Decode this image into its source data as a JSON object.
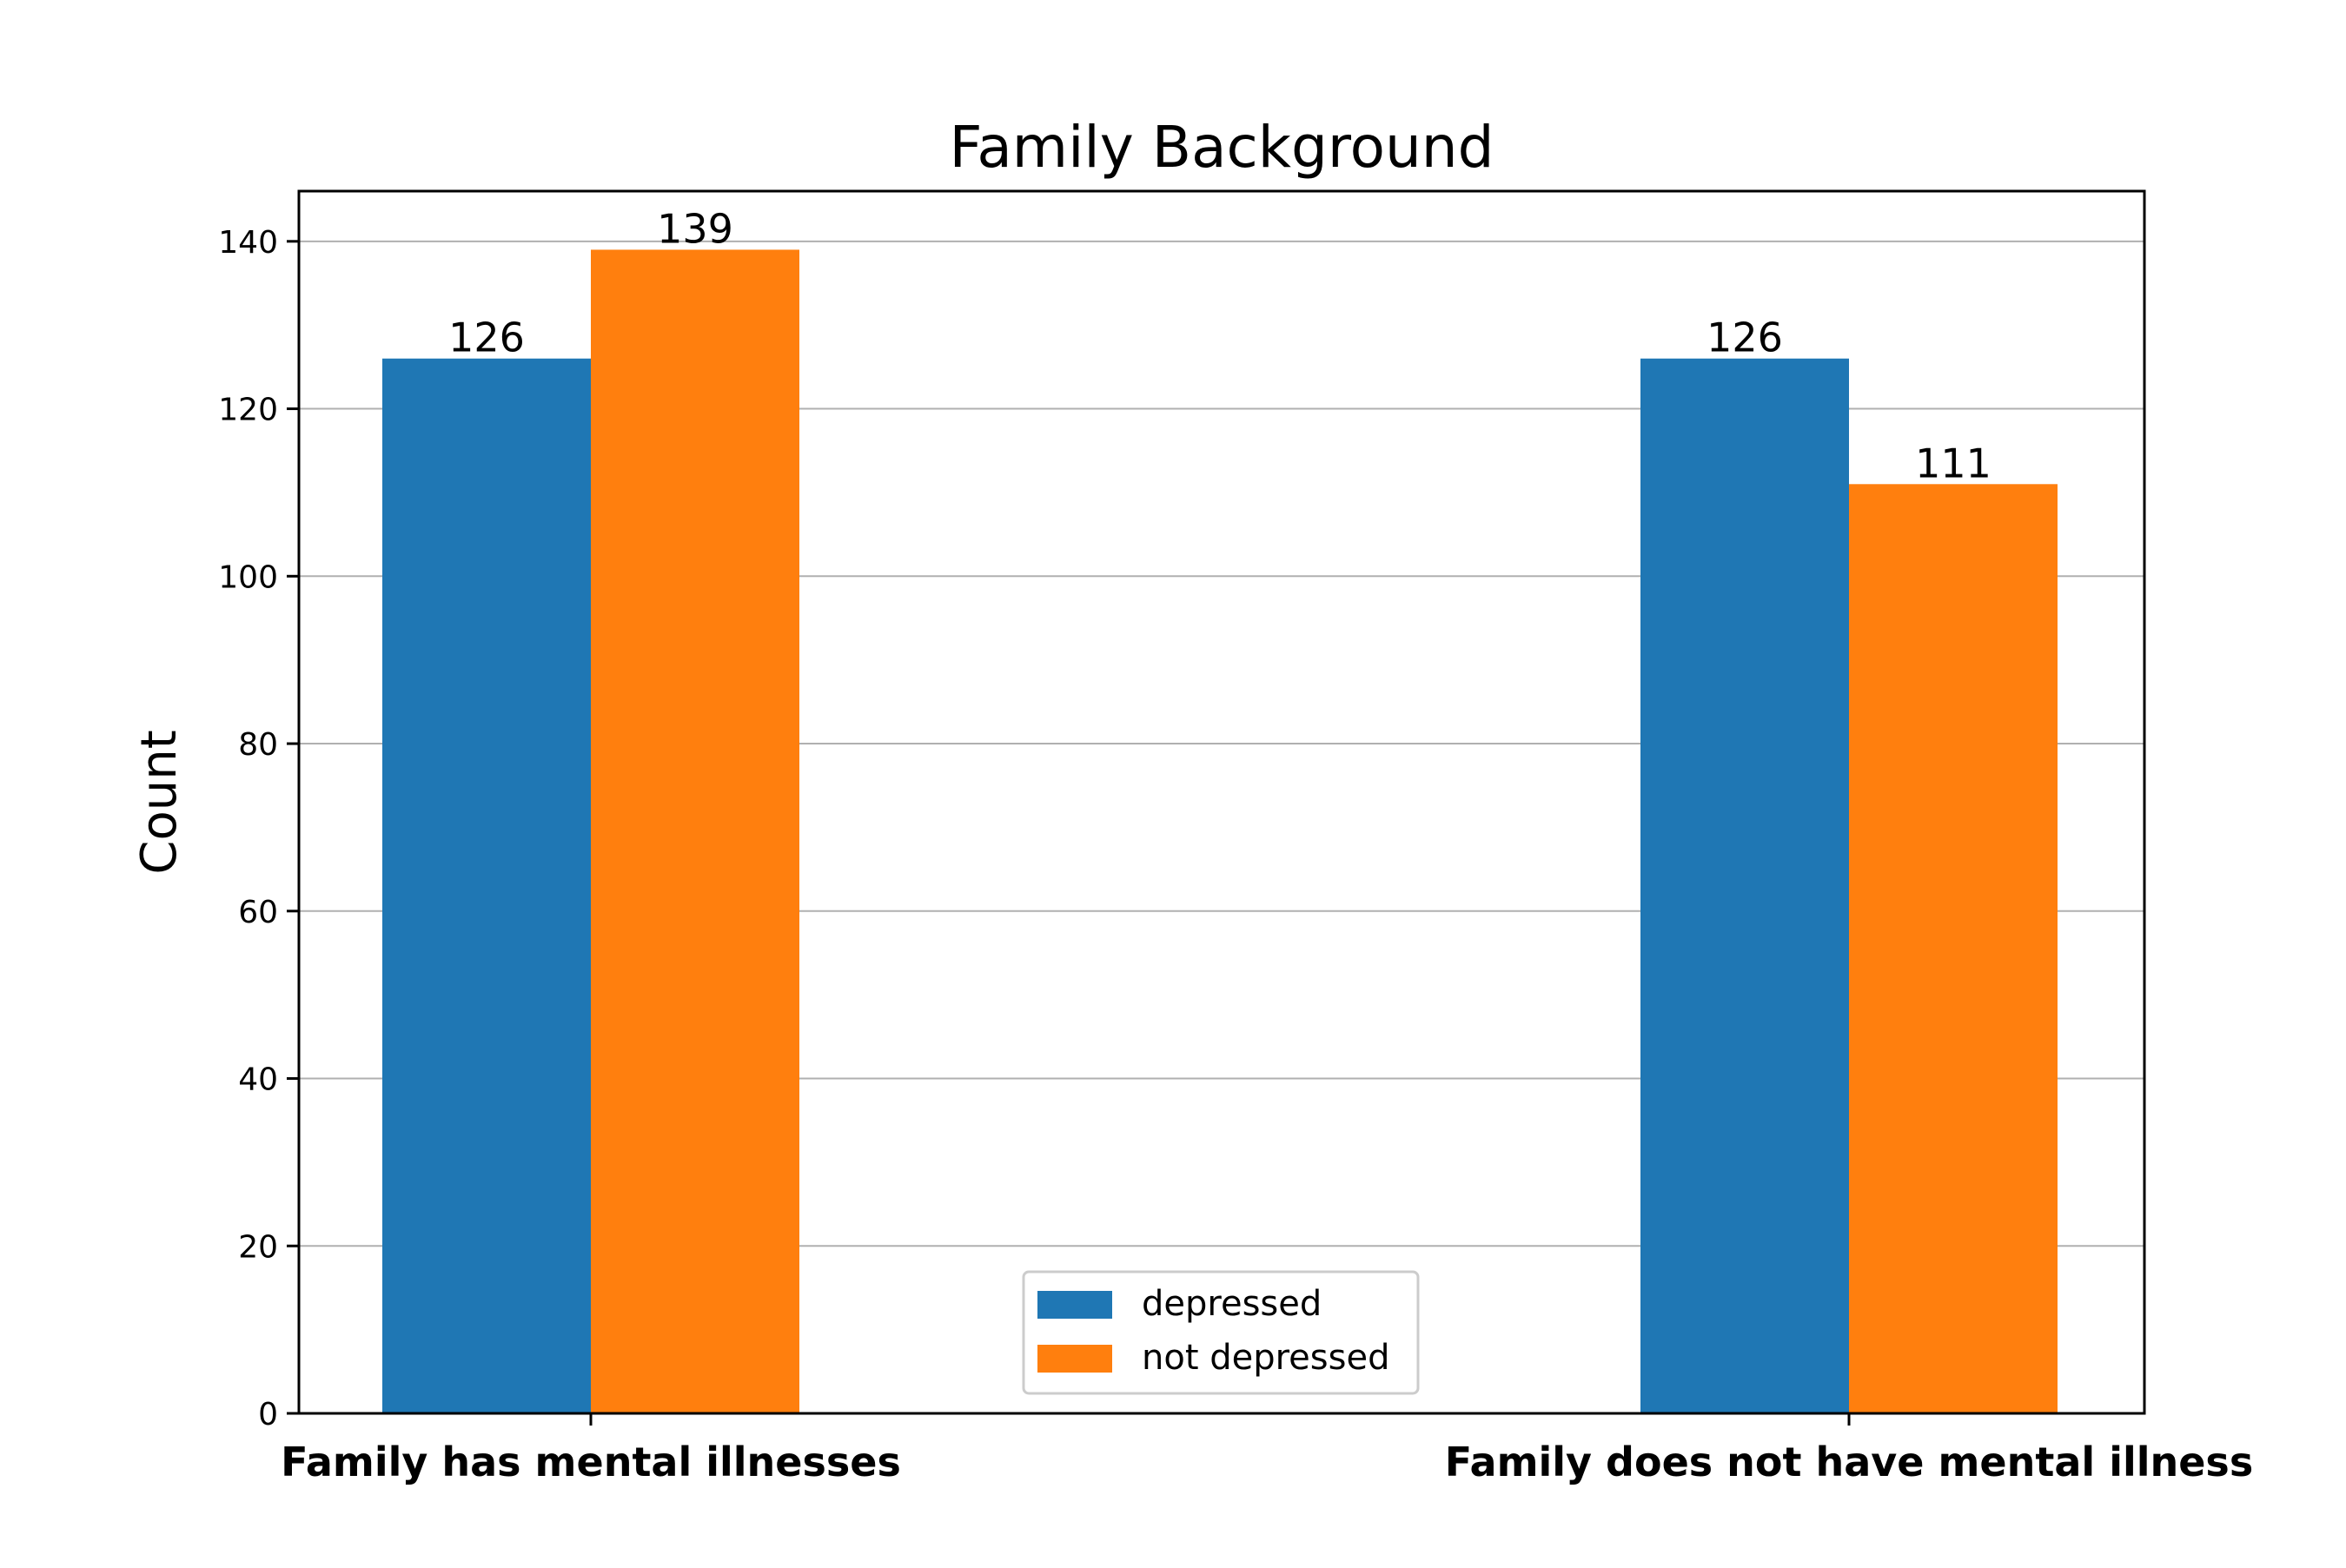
{
  "chart_data": {
    "type": "bar",
    "title": "Family Background",
    "xlabel": "",
    "ylabel": "Count",
    "categories": [
      "Family has mental illnesses",
      "Family does not have mental illness"
    ],
    "series": [
      {
        "name": "depressed",
        "color": "#1f77b4",
        "values": [
          126,
          126
        ]
      },
      {
        "name": "not depressed",
        "color": "#ff7f0e",
        "values": [
          139,
          111
        ]
      }
    ],
    "ylim": [
      0,
      146
    ],
    "yticks": [
      0,
      20,
      40,
      60,
      80,
      100,
      120,
      140
    ],
    "grid": "horizontal",
    "legend_position": "bottom-center"
  }
}
